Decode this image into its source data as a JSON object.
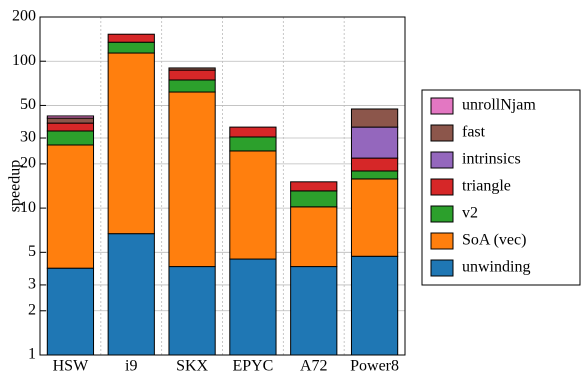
{
  "chart_data": {
    "type": "stacked_bar",
    "ylabel": "speedup",
    "categories": [
      "HSW",
      "i9",
      "SKX",
      "EPYC",
      "A72",
      "Power8"
    ],
    "series": [
      {
        "name": "unwinding",
        "color": "#1f77b4",
        "values": [
          3.9,
          6.7,
          4,
          4.5,
          4,
          4.7
        ]
      },
      {
        "name": "SoA (vec)",
        "color": "#ff7f0e",
        "values": [
          23,
          107,
          57.7,
          20,
          6.2,
          11.1
        ]
      },
      {
        "name": "v2",
        "color": "#2ca02c",
        "values": [
          6.6,
          21,
          12.8,
          6,
          2.9,
          2.1
        ]
      },
      {
        "name": "triangle",
        "color": "#d62728",
        "values": [
          4.4,
          18,
          12.5,
          5.1,
          2,
          4
        ]
      },
      {
        "name": "intrinsics",
        "color": "#9467bd",
        "values": [
          0,
          0,
          0,
          0,
          0,
          13.7
        ]
      },
      {
        "name": "fast",
        "color": "#8c564b",
        "values": [
          3.1,
          0,
          3,
          0,
          0,
          11.7
        ]
      },
      {
        "name": "unrollNjam",
        "color": "#e377c2",
        "values": [
          1.4,
          0,
          0,
          0,
          0,
          0
        ]
      }
    ],
    "ylim": [
      1,
      200
    ],
    "yticks": [
      1,
      2,
      3,
      5,
      10,
      20,
      30,
      50,
      100,
      200
    ],
    "log_y": true,
    "grid": true,
    "legend": "right"
  }
}
